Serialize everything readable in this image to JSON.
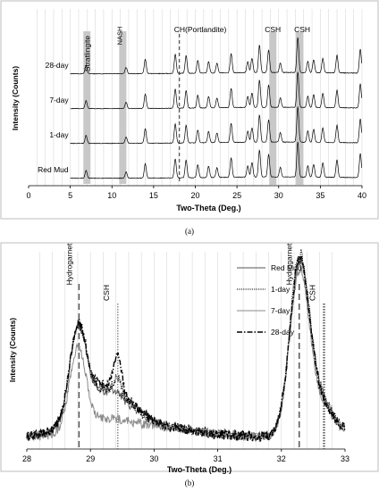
{
  "chart_data": [
    {
      "panel": "(a)",
      "type": "line",
      "xlabel": "Two-Theta (Deg.)",
      "ylabel": "Intensity (Counts)",
      "xlim": [
        0,
        40
      ],
      "xticks": [
        0,
        5,
        10,
        15,
        20,
        25,
        30,
        35,
        40
      ],
      "grid": "vertical",
      "series": [
        {
          "name": "28-day",
          "offset": 3
        },
        {
          "name": "7-day",
          "offset": 2
        },
        {
          "name": "1-day",
          "offset": 1
        },
        {
          "name": "Red Mud",
          "offset": 0
        }
      ],
      "peaks": [
        {
          "x": 6.9,
          "h": 0.25
        },
        {
          "x": 11.7,
          "h": 0.2
        },
        {
          "x": 14.0,
          "h": 0.45
        },
        {
          "x": 17.6,
          "h": 0.6
        },
        {
          "x": 18.9,
          "h": 0.55
        },
        {
          "x": 20.3,
          "h": 0.4
        },
        {
          "x": 21.6,
          "h": 0.35
        },
        {
          "x": 22.6,
          "h": 0.3
        },
        {
          "x": 24.3,
          "h": 0.6
        },
        {
          "x": 26.3,
          "h": 0.35
        },
        {
          "x": 26.8,
          "h": 0.45
        },
        {
          "x": 27.7,
          "h": 0.85
        },
        {
          "x": 28.8,
          "h": 0.7
        },
        {
          "x": 30.2,
          "h": 0.3
        },
        {
          "x": 32.3,
          "h": 1.1
        },
        {
          "x": 33.5,
          "h": 0.35
        },
        {
          "x": 34.2,
          "h": 0.4
        },
        {
          "x": 35.3,
          "h": 0.45
        },
        {
          "x": 37.0,
          "h": 0.55
        },
        {
          "x": 39.8,
          "h": 0.75
        }
      ],
      "bands": [
        {
          "label": "Stratlingite",
          "x": 7.0
        },
        {
          "label": "NASH",
          "x": 11.3
        },
        {
          "label": "CSH",
          "x": 29.3
        },
        {
          "label": "CSH",
          "x": 32.5
        }
      ],
      "marker": {
        "label": "CH(Portlandite)",
        "x": 18.1
      },
      "caption": "(a)"
    },
    {
      "panel": "(b)",
      "type": "line",
      "xlabel": "Two-Theta (Deg.)",
      "ylabel": "Intensity (Counts)",
      "xlim": [
        28,
        33
      ],
      "xticks": [
        28,
        29,
        30,
        31,
        32,
        33
      ],
      "grid": "vertical",
      "legend": "top-right",
      "series": [
        {
          "name": "Red Mud",
          "style": "solid",
          "color": "#555555",
          "p1": 0.52,
          "csh": 0.02,
          "p2": 0.96,
          "base1": 0.26,
          "base2": 0.24
        },
        {
          "name": "1-day",
          "style": "dotted",
          "color": "#000000",
          "p1": 0.53,
          "csh": 0.1,
          "p2": 1.0,
          "base1": 0.27,
          "base2": 0.25
        },
        {
          "name": "7-day",
          "style": "solid",
          "color": "#8a8a8a",
          "p1": 0.5,
          "csh": 0.0,
          "p2": 0.93,
          "base1": 0.08,
          "base2": 0.2
        },
        {
          "name": "28-day",
          "style": "dashdot",
          "color": "#000000",
          "p1": 0.51,
          "csh": 0.22,
          "p2": 0.98,
          "base1": 0.3,
          "base2": 0.23
        }
      ],
      "annotations": [
        {
          "label": "Hydrogarnet",
          "x": 28.82,
          "line": "dashed"
        },
        {
          "label": "CSH",
          "x": 29.43,
          "line": "dotted"
        },
        {
          "label": "Hydrogarnet",
          "x": 32.28,
          "line": "dashed"
        },
        {
          "label": "CSH",
          "x": 32.67,
          "line": "dotted"
        }
      ],
      "caption": "(b)"
    }
  ]
}
